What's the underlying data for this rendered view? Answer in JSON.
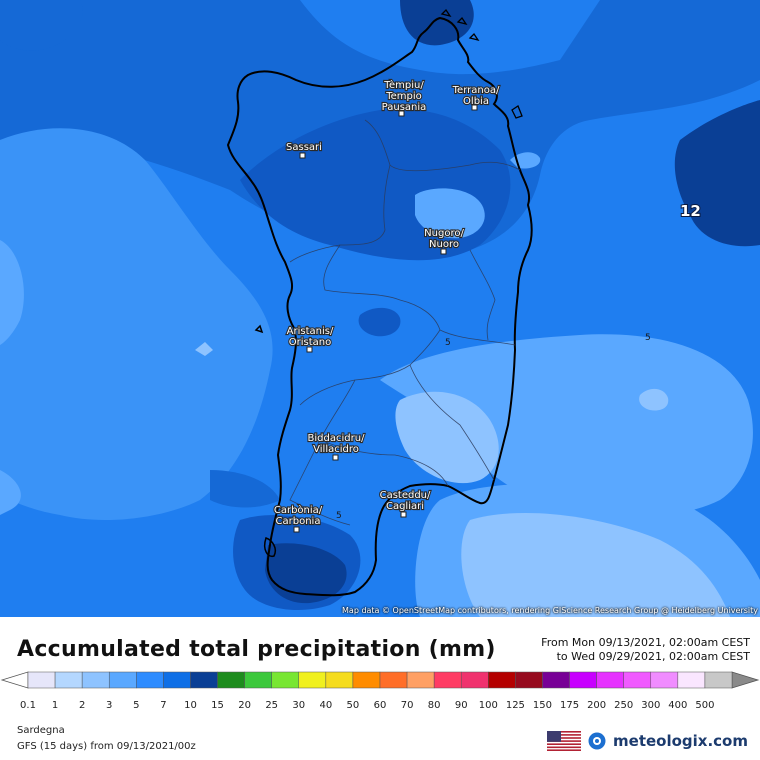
{
  "map": {
    "cities": [
      {
        "id": "tempio",
        "lines": [
          "Tèmpiu/",
          "Tempio",
          "Pausania"
        ]
      },
      {
        "id": "olbia",
        "lines": [
          "Terranoa/",
          "Olbia"
        ]
      },
      {
        "id": "sassari",
        "lines": [
          "Sassari"
        ]
      },
      {
        "id": "nuoro",
        "lines": [
          "Nugoro/",
          "Nuoro"
        ]
      },
      {
        "id": "oristano",
        "lines": [
          "Aristanis/",
          "Oristano"
        ]
      },
      {
        "id": "villacidro",
        "lines": [
          "Biddacidru/",
          "Villacidro"
        ]
      },
      {
        "id": "cagliari",
        "lines": [
          "Casteddu/",
          "Cagliari"
        ]
      },
      {
        "id": "carbonia",
        "lines": [
          "Carbònia/",
          "Carbonia"
        ]
      }
    ],
    "contour_labels": [
      "5",
      "5",
      "5"
    ],
    "max_value_label": "12",
    "attribution": "Map data © OpenStreetMap contributors, rendering GIScience Research Group @ Heidelberg University"
  },
  "header": {
    "title": "Accumulated total precipitation (mm)",
    "from": "From Mon 09/13/2021, 02:00am CEST",
    "to": "to Wed 09/29/2021, 02:00am CEST"
  },
  "legend": {
    "values": [
      "0.1",
      "1",
      "2",
      "3",
      "5",
      "7",
      "10",
      "15",
      "20",
      "25",
      "30",
      "40",
      "50",
      "60",
      "70",
      "80",
      "90",
      "100",
      "125",
      "150",
      "175",
      "200",
      "250",
      "300",
      "400",
      "500"
    ],
    "colors": [
      "#e6e6fa",
      "#b4d7ff",
      "#8ec3ff",
      "#5aa8ff",
      "#2e8cff",
      "#0f6fe6",
      "#0a3f95",
      "#1e8c1e",
      "#3cc83c",
      "#78e632",
      "#f0f01e",
      "#f5dc1e",
      "#ff8c00",
      "#ff6e28",
      "#ffa064",
      "#ff3c64",
      "#f0326e",
      "#b40000",
      "#960a1e",
      "#780096",
      "#c800ff",
      "#e632ff",
      "#f05aff",
      "#f08cff",
      "#fae6ff",
      "#c8c8c8"
    ]
  },
  "footer": {
    "region": "Sardegna",
    "model": "GFS (15 days) from 09/13/2021/00z",
    "brand": "meteologix.com"
  }
}
